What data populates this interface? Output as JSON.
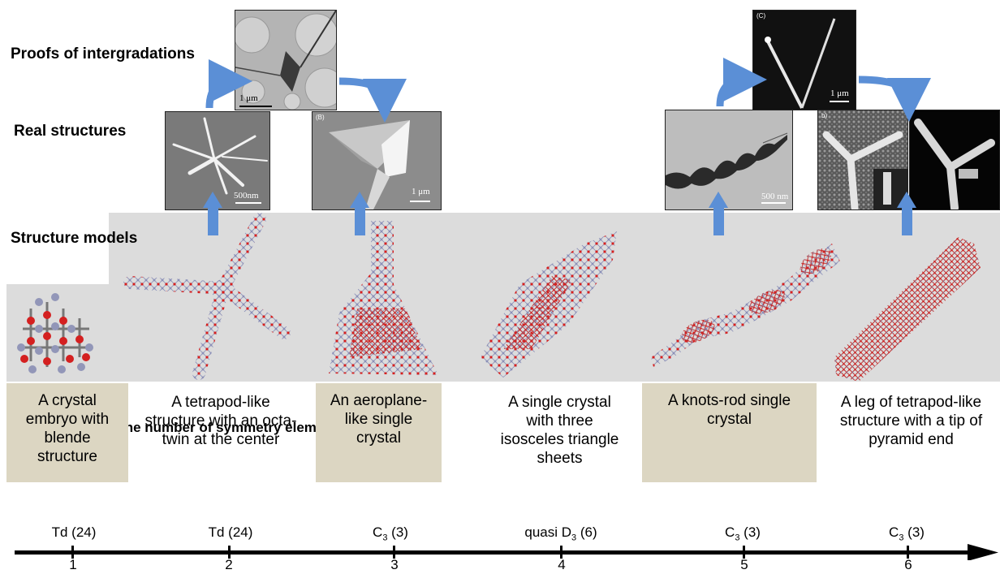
{
  "row_labels": {
    "proofs": "Proofs of intergradations",
    "real": "Real structures",
    "models": "Structure models",
    "point_group": "Point group and the number of symmetry elements:"
  },
  "micrographs": {
    "tetrapod_scale": "500nm",
    "aeroplane_tag": "(B)",
    "aeroplane_scale": "1 μm",
    "proof1_scale": "1 μm",
    "proof2_tag": "(C)",
    "proof2_scale": "1 μm",
    "knots_scale": "500 nm",
    "leg_tag": "b)"
  },
  "descriptions": [
    {
      "id": "1",
      "text": "A crystal embryo with blende structure"
    },
    {
      "id": "2",
      "text": "A tetrapod-like structure with an octa-twin at the center"
    },
    {
      "id": "3",
      "text": "An aeroplane-like single crystal"
    },
    {
      "id": "4",
      "text": "A single crystal with three isosceles triangle sheets"
    },
    {
      "id": "5",
      "text": "A knots-rod single crystal"
    },
    {
      "id": "6",
      "text": "A leg of tetrapod-like structure with a tip of pyramid end"
    }
  ],
  "point_groups": [
    {
      "symbol": "Td",
      "subscript": "",
      "count": "(24)"
    },
    {
      "symbol": "Td",
      "subscript": "",
      "count": "(24)"
    },
    {
      "symbol": "C",
      "subscript": "3",
      "count": "(3)"
    },
    {
      "symbol": "quasi D",
      "subscript": "3",
      "count": "(6)"
    },
    {
      "symbol": "C",
      "subscript": "3",
      "count": "(3)"
    },
    {
      "symbol": "C",
      "subscript": "3",
      "count": "(3)"
    }
  ],
  "axis_ticks": [
    "1",
    "2",
    "3",
    "4",
    "5",
    "6"
  ],
  "colors": {
    "arrow_blue": "#5b8fd6",
    "atom_red": "#d42020",
    "atom_blue": "#8a8fb8",
    "bg_gray": "#dcdcdc",
    "tan": "#dcd6c2"
  }
}
